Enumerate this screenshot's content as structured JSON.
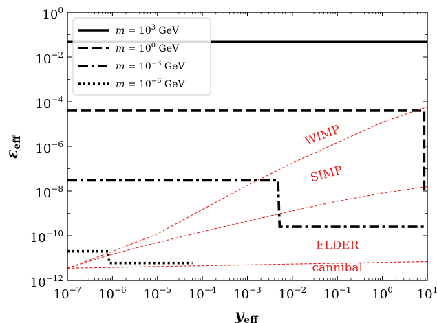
{
  "chart_data": {
    "type": "line",
    "xlabel_main": "y",
    "xlabel_sub": "eff",
    "ylabel_main": "ε",
    "ylabel_sub": "eff",
    "x_scale": "log",
    "y_scale": "log",
    "xlim": [
      1e-07,
      10
    ],
    "ylim": [
      1e-12,
      1
    ],
    "x_ticks": [
      {
        "value": 1e-07,
        "base": "10",
        "exp": "−7"
      },
      {
        "value": 1e-06,
        "base": "10",
        "exp": "−6"
      },
      {
        "value": 1e-05,
        "base": "10",
        "exp": "−5"
      },
      {
        "value": 0.0001,
        "base": "10",
        "exp": "−4"
      },
      {
        "value": 0.001,
        "base": "10",
        "exp": "−3"
      },
      {
        "value": 0.01,
        "base": "10",
        "exp": "−2"
      },
      {
        "value": 0.1,
        "base": "10",
        "exp": "−1"
      },
      {
        "value": 1,
        "base": "10",
        "exp": "0"
      },
      {
        "value": 10,
        "base": "10",
        "exp": "1"
      }
    ],
    "y_ticks": [
      {
        "value": 1,
        "base": "10",
        "exp": "0"
      },
      {
        "value": 0.01,
        "base": "10",
        "exp": "−2"
      },
      {
        "value": 0.0001,
        "base": "10",
        "exp": "−4"
      },
      {
        "value": 1e-06,
        "base": "10",
        "exp": "−6"
      },
      {
        "value": 1e-08,
        "base": "10",
        "exp": "−8"
      },
      {
        "value": 1e-10,
        "base": "10",
        "exp": "−10"
      },
      {
        "value": 1e-12,
        "base": "10",
        "exp": "−12"
      }
    ],
    "grid": false,
    "legend_position": "top-left",
    "series": [
      {
        "name": "m = 10^3 GeV",
        "legend": {
          "prefix": "m = 10",
          "exp": "3",
          "suffix": " GeV"
        },
        "style": "solid",
        "color": "#000000",
        "points": [
          [
            1e-07,
            0.05
          ],
          [
            10,
            0.05
          ]
        ]
      },
      {
        "name": "m = 10^0 GeV",
        "legend": {
          "prefix": "m = 10",
          "exp": "0",
          "suffix": " GeV"
        },
        "style": "dashed",
        "color": "#000000",
        "points": [
          [
            1e-07,
            4e-05
          ],
          [
            8.5,
            4e-05
          ],
          [
            8.5,
            1e-08
          ],
          [
            10,
            1e-08
          ]
        ]
      },
      {
        "name": "m = 10^-3 GeV",
        "legend": {
          "prefix": "m = 10",
          "exp": "−3",
          "suffix": " GeV"
        },
        "style": "dashdot",
        "color": "#000000",
        "points": [
          [
            1e-07,
            3e-08
          ],
          [
            0.0048,
            3e-08
          ],
          [
            0.0052,
            2.5e-10
          ],
          [
            8.5,
            2.5e-10
          ]
        ]
      },
      {
        "name": "m = 10^-6 GeV",
        "legend": {
          "prefix": "m = 10",
          "exp": "−6",
          "suffix": " GeV"
        },
        "style": "dotted",
        "color": "#000000",
        "points": [
          [
            1e-07,
            2e-11
          ],
          [
            8e-07,
            2e-11
          ],
          [
            8.5e-07,
            6e-12
          ],
          [
            6e-05,
            6e-12
          ]
        ]
      }
    ],
    "boundaries": [
      {
        "name": "WIMP",
        "color": "#e8201e",
        "points": [
          [
            1e-07,
            3.5e-12
          ],
          [
            1e-06,
            2e-11
          ],
          [
            1e-05,
            1.2e-10
          ],
          [
            0.0001,
            1.5e-09
          ],
          [
            0.001,
            1.8e-08
          ],
          [
            0.01,
            1.8e-07
          ],
          [
            0.1,
            1.5e-06
          ],
          [
            1,
            1.2e-05
          ],
          [
            10,
            6e-05
          ]
        ]
      },
      {
        "name": "SIMP",
        "color": "#e8201e",
        "points": [
          [
            1e-07,
            3.5e-12
          ],
          [
            1e-06,
            1.5e-11
          ],
          [
            1e-05,
            5e-11
          ],
          [
            0.0001,
            1.5e-10
          ],
          [
            0.001,
            4.5e-10
          ],
          [
            0.01,
            1.3e-09
          ],
          [
            0.1,
            3.5e-09
          ],
          [
            1,
            8e-09
          ],
          [
            10,
            1.6e-08
          ]
        ]
      },
      {
        "name": "ELDER",
        "color": "#e8201e",
        "points": [
          [
            1e-07,
            3.5e-12
          ],
          [
            10,
            7e-12
          ]
        ]
      },
      {
        "name": "cannibal",
        "color": "#e8201e",
        "points": []
      }
    ],
    "region_labels": [
      {
        "text": "WIMP",
        "x": 0.05,
        "y": 2.2e-06,
        "rotate": -21
      },
      {
        "text": "SIMP",
        "x": 0.06,
        "y": 4e-08,
        "rotate": -15
      },
      {
        "text": "ELDER",
        "x": 0.1,
        "y": 2.5e-11,
        "rotate": 0
      },
      {
        "text": "cannibal",
        "x": 0.1,
        "y": 2.5e-12,
        "rotate": 0
      }
    ]
  }
}
